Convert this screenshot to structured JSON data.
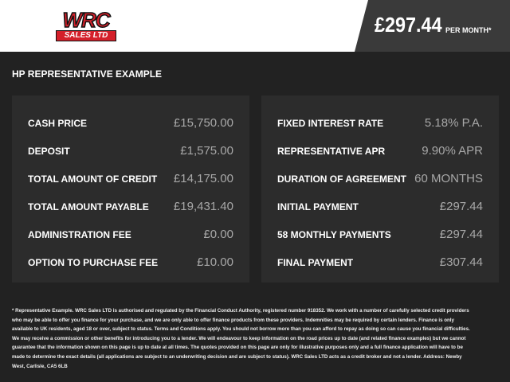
{
  "header": {
    "logo_top": "WRC",
    "logo_bottom": "SALES LTD",
    "price": "£297.44",
    "price_suffix": "PER MONTH*"
  },
  "section_title": "HP REPRESENTATIVE EXAMPLE",
  "left_panel": {
    "rows": [
      [
        "CASH PRICE",
        "£15,750.00"
      ],
      [
        "DEPOSIT",
        "£1,575.00"
      ],
      [
        "TOTAL AMOUNT OF CREDIT",
        "£14,175.00"
      ],
      [
        "TOTAL AMOUNT PAYABLE",
        "£19,431.40"
      ],
      [
        "ADMINISTRATION FEE",
        "£0.00"
      ],
      [
        "OPTION TO PURCHASE FEE",
        "£10.00"
      ]
    ]
  },
  "right_panel": {
    "rows": [
      [
        "FIXED INTEREST RATE",
        "5.18% P.A."
      ],
      [
        "REPRESENTATIVE APR",
        "9.90% APR"
      ],
      [
        "DURATION OF AGREEMENT",
        "60 MONTHS"
      ],
      [
        "INITIAL PAYMENT",
        "£297.44"
      ],
      [
        "58 MONTHLY PAYMENTS",
        "£297.44"
      ],
      [
        "FINAL PAYMENT",
        "£307.44"
      ]
    ]
  },
  "footnote": "* Representative Example. WRC Sales LTD is authorised and regulated by the Financial Conduct Authority, registered number 918352. We work with a number of carefully selected credit providers who may be able to offer you finance for your purchase, and we are only able to offer finance products from these providers. Indemnities may be required by certain lenders. Finance is only available to UK residents, aged 18 or over, subject to status. Terms and Conditions apply. You should not borrow more than you can afford to repay as doing so can cause you financial difficulties. We may receive a commission or other benefits for introducing you to a lender. We will endeavour to keep information on the road prices up to date (and related finance examples) but we cannot guarantee that the information shown on this page is up to date at all times. The quotes provided on this page are only for illustrative purposes only and a full finance application will have to be made to determine the exact details (all applications are subject to an underwriting decision and are subject to status). WRC Sales LTD acts as a credit broker and not a lender. Address: Newby West, Carlisle, CA5 6LB"
}
